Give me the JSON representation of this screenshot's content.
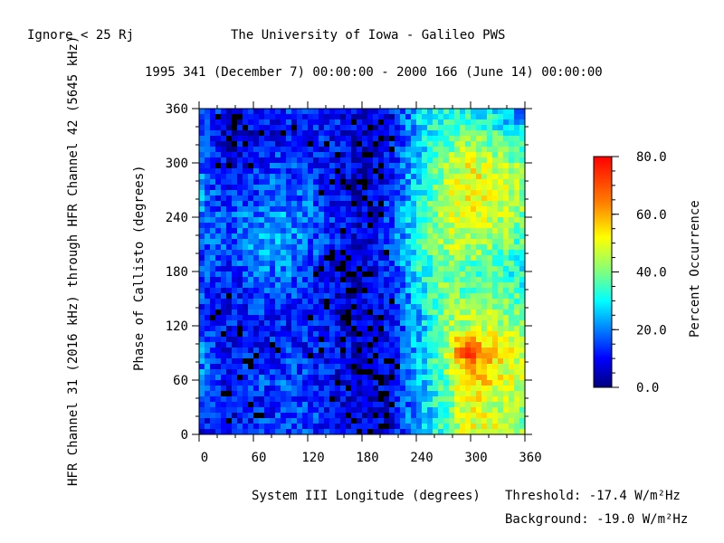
{
  "header": {
    "note": "Ignore < 25 Rj",
    "title": "The University of Iowa - Galileo PWS",
    "date_range": "1995 341 (December 7) 00:00:00 - 2000 166 (June 14) 00:00:00"
  },
  "side_label": "HFR Channel 31 (2016 kHz) through HFR Channel 42 (5645 kHz)",
  "footer": {
    "threshold": "Threshold:  -17.4 W/m²Hz",
    "background": "Background: -19.0 W/m²Hz"
  },
  "colors": {
    "colormap": [
      "#00007f",
      "#0000ff",
      "#007fff",
      "#00ffff",
      "#7fff7f",
      "#ffff00",
      "#ff7f00",
      "#ff0000"
    ],
    "black_cells": "#000000"
  },
  "chart_data": {
    "type": "heatmap",
    "title": "",
    "xlabel": "System III Longitude (degrees)",
    "ylabel": "Phase of Callisto (degrees)",
    "xlim": [
      0,
      360
    ],
    "ylim": [
      0,
      360
    ],
    "xticks": [
      "0",
      "60",
      "120",
      "180",
      "240",
      "300",
      "360"
    ],
    "yticks": [
      "0",
      "60",
      "120",
      "180",
      "240",
      "300",
      "360"
    ],
    "x_centers_approx": [
      0,
      30,
      60,
      90,
      120,
      150,
      180,
      210,
      240,
      270,
      285,
      300,
      315,
      330,
      345,
      360
    ],
    "y_centers_approx": [
      0,
      30,
      60,
      90,
      120,
      150,
      180,
      210,
      240,
      270,
      300,
      330,
      360
    ],
    "values_percent": [
      [
        12,
        10,
        14,
        16,
        15,
        10,
        6,
        8,
        22,
        35,
        45,
        50,
        50,
        48,
        45,
        40
      ],
      [
        15,
        8,
        10,
        14,
        15,
        10,
        5,
        8,
        22,
        35,
        45,
        50,
        48,
        46,
        45,
        40
      ],
      [
        20,
        10,
        14,
        16,
        15,
        10,
        5,
        8,
        25,
        35,
        48,
        55,
        55,
        50,
        48,
        45
      ],
      [
        22,
        8,
        12,
        14,
        12,
        10,
        5,
        8,
        25,
        40,
        60,
        75,
        60,
        55,
        50,
        45
      ],
      [
        18,
        10,
        12,
        12,
        12,
        8,
        5,
        10,
        22,
        38,
        45,
        45,
        45,
        45,
        42,
        40
      ],
      [
        15,
        10,
        14,
        14,
        12,
        8,
        6,
        10,
        25,
        40,
        40,
        40,
        40,
        40,
        38,
        35
      ],
      [
        15,
        12,
        18,
        20,
        15,
        8,
        5,
        12,
        30,
        40,
        38,
        35,
        35,
        35,
        32,
        30
      ],
      [
        18,
        15,
        22,
        22,
        18,
        12,
        6,
        15,
        32,
        42,
        45,
        45,
        42,
        40,
        38,
        35
      ],
      [
        20,
        15,
        20,
        22,
        20,
        12,
        6,
        15,
        30,
        45,
        48,
        50,
        48,
        45,
        42,
        40
      ],
      [
        22,
        10,
        15,
        18,
        16,
        10,
        5,
        12,
        28,
        45,
        50,
        55,
        52,
        48,
        45,
        42
      ],
      [
        18,
        8,
        12,
        15,
        14,
        10,
        5,
        10,
        25,
        40,
        45,
        50,
        48,
        45,
        42,
        40
      ],
      [
        15,
        4,
        8,
        10,
        12,
        10,
        5,
        8,
        25,
        35,
        38,
        40,
        38,
        35,
        32,
        30
      ],
      [
        20,
        8,
        10,
        12,
        15,
        12,
        4,
        8,
        25,
        30,
        30,
        28,
        28,
        25,
        22,
        20
      ]
    ],
    "colorbar": {
      "label": "Percent Occurrence",
      "range": [
        0,
        80
      ],
      "ticks": [
        "0.0",
        "20.0",
        "40.0",
        "60.0",
        "80.0"
      ]
    }
  }
}
